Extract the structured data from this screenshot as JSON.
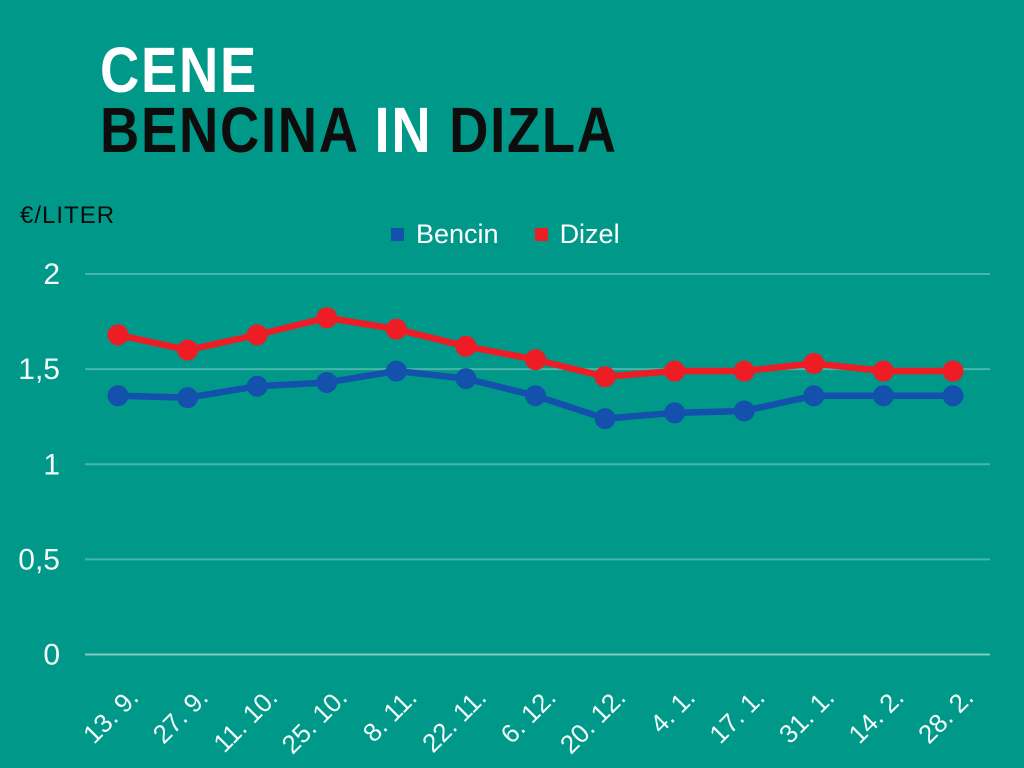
{
  "title": {
    "line1": "CENE",
    "line2_parts": [
      {
        "text": "BENCINA ",
        "color": "black"
      },
      {
        "text": "IN",
        "color": "white"
      },
      {
        "text": " DIZLA",
        "color": "black"
      }
    ]
  },
  "unit_label": "€/LITER",
  "legend": [
    {
      "label": "Bencin",
      "color": "#1451ac"
    },
    {
      "label": "Dizel",
      "color": "#ee1c24"
    }
  ],
  "colors": {
    "background": "#009989",
    "grid": "rgba(255,255,255,0.28)",
    "axis_zero_line": "rgba(255,255,255,0.5)",
    "tick_text": "#f2fbfa",
    "bencin": "#1451ac",
    "dizel": "#ee1c24"
  },
  "chart_data": {
    "type": "line",
    "title": "CENE BENCINA IN DIZLA",
    "ylabel": "€/LITER",
    "xlabel": "",
    "ylim": [
      0,
      2
    ],
    "yticks": [
      0,
      0.5,
      1,
      1.5,
      2
    ],
    "ytick_labels": [
      "0",
      "0,5",
      "1",
      "1,5",
      "2"
    ],
    "grid": true,
    "legend_position": "top",
    "categories": [
      "13. 9.",
      "27. 9.",
      "11. 10.",
      "25. 10.",
      "8. 11.",
      "22. 11.",
      "6. 12.",
      "20. 12.",
      "4. 1.",
      "17. 1.",
      "31. 1.",
      "14. 2.",
      "28. 2."
    ],
    "series": [
      {
        "name": "Bencin",
        "color": "#1451ac",
        "values": [
          1.36,
          1.35,
          1.41,
          1.43,
          1.49,
          1.45,
          1.36,
          1.24,
          1.27,
          1.28,
          1.36,
          1.36,
          1.36
        ]
      },
      {
        "name": "Dizel",
        "color": "#ee1c24",
        "values": [
          1.68,
          1.6,
          1.68,
          1.77,
          1.71,
          1.62,
          1.55,
          1.46,
          1.49,
          1.49,
          1.53,
          1.49,
          1.49
        ]
      }
    ]
  }
}
